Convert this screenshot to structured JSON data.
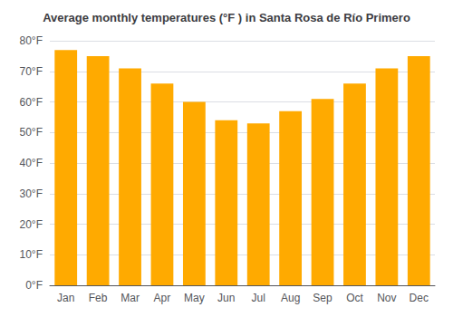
{
  "chart_data": {
    "type": "bar",
    "title": "Average monthly temperatures (°F ) in Santa Rosa de Río Primero",
    "categories": [
      "Jan",
      "Feb",
      "Mar",
      "Apr",
      "May",
      "Jun",
      "Jul",
      "Aug",
      "Sep",
      "Oct",
      "Nov",
      "Dec"
    ],
    "values": [
      77,
      75,
      71,
      66,
      60,
      54,
      53,
      57,
      61,
      66,
      71,
      75
    ],
    "color": "#FFAA00",
    "ylim": [
      0,
      80
    ],
    "yticks": [
      {
        "value": 0,
        "label": "0°F"
      },
      {
        "value": 10,
        "label": "10°F"
      },
      {
        "value": 20,
        "label": "20°F"
      },
      {
        "value": 30,
        "label": "30°F"
      },
      {
        "value": 40,
        "label": "40°F"
      },
      {
        "value": 50,
        "label": "50°F"
      },
      {
        "value": 60,
        "label": "60°F"
      },
      {
        "value": 70,
        "label": "70°F"
      },
      {
        "value": 80,
        "label": "80°F"
      }
    ],
    "grid": true
  }
}
